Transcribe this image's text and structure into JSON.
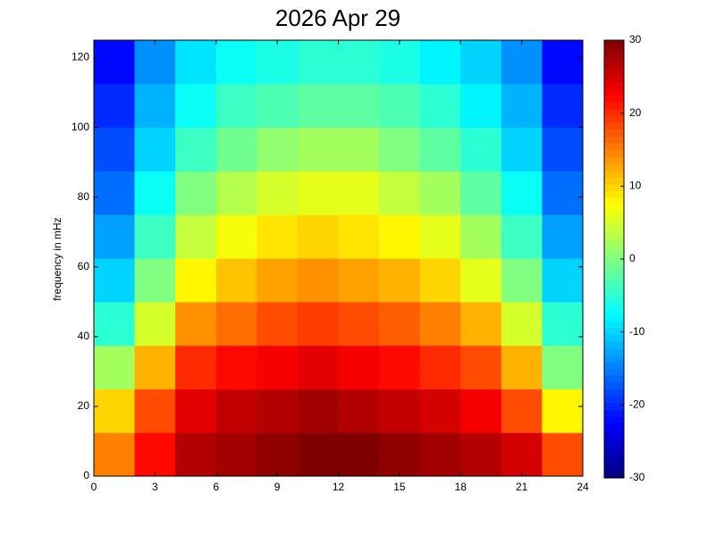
{
  "chart_data": {
    "type": "heatmap",
    "title": "2026 Apr 29",
    "y_label": "frequency in mHz",
    "colormap": "jet",
    "x_bins": [
      0,
      2,
      4,
      6,
      8,
      10,
      12,
      14,
      16,
      18,
      20,
      22,
      24
    ],
    "y_bins": [
      0,
      12.5,
      25,
      37.5,
      50,
      62.5,
      75,
      87.5,
      100,
      112.5,
      125
    ],
    "values": [
      [
        15,
        22,
        27,
        28,
        29,
        30,
        30,
        29,
        28,
        27,
        25,
        18
      ],
      [
        10,
        18,
        24,
        26,
        27,
        28,
        27,
        26,
        25,
        23,
        18,
        8
      ],
      [
        2,
        12,
        20,
        22,
        23,
        24,
        23,
        22,
        20,
        18,
        12,
        0
      ],
      [
        -5,
        5,
        14,
        16,
        18,
        19,
        18,
        17,
        15,
        12,
        5,
        -5
      ],
      [
        -10,
        0,
        8,
        11,
        13,
        14,
        13,
        12,
        10,
        6,
        0,
        -10
      ],
      [
        -13,
        -4,
        4,
        7,
        9,
        10,
        9,
        8,
        6,
        2,
        -4,
        -13
      ],
      [
        -16,
        -7,
        0,
        3,
        5,
        6,
        6,
        4,
        2,
        -2,
        -7,
        -16
      ],
      [
        -18,
        -10,
        -4,
        -1,
        1,
        2,
        2,
        0,
        -2,
        -5,
        -10,
        -18
      ],
      [
        -20,
        -12,
        -7,
        -4,
        -3,
        -2,
        -2,
        -3,
        -5,
        -8,
        -12,
        -20
      ],
      [
        -22,
        -14,
        -9,
        -7,
        -6,
        -5,
        -5,
        -6,
        -8,
        -10,
        -14,
        -22
      ]
    ],
    "xlim": [
      0,
      24
    ],
    "xticks": [
      0,
      3,
      6,
      9,
      12,
      15,
      18,
      21,
      24
    ],
    "ylim": [
      0,
      125
    ],
    "yticks": [
      0,
      20,
      40,
      60,
      80,
      100,
      120
    ],
    "clim": [
      -30,
      30
    ],
    "cticks": [
      -30,
      -20,
      -10,
      0,
      10,
      20,
      30
    ]
  }
}
